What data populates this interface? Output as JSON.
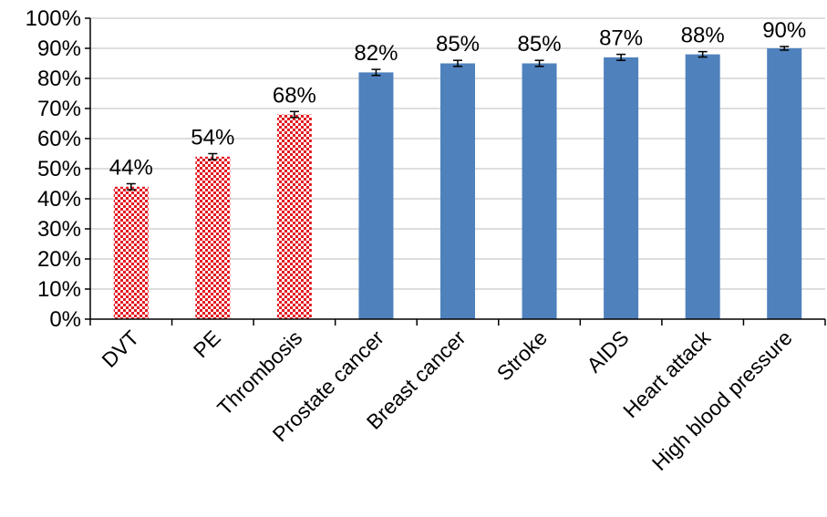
{
  "chart_data": {
    "type": "bar",
    "title": "",
    "xlabel": "",
    "ylabel": "",
    "categories": [
      "DVT",
      "PE",
      "Thrombosis",
      "Prostate cancer",
      "Breast cancer",
      "Stroke",
      "AIDS",
      "Heart attack",
      "High blood pressure"
    ],
    "values": [
      44,
      54,
      68,
      82,
      85,
      85,
      87,
      88,
      90
    ],
    "data_labels": [
      "44%",
      "54%",
      "68%",
      "82%",
      "85%",
      "85%",
      "87%",
      "88%",
      "90%"
    ],
    "error": [
      1.0,
      1.0,
      1.0,
      1.0,
      1.0,
      1.0,
      1.0,
      0.9,
      0.6
    ],
    "groups": [
      "clot",
      "clot",
      "clot",
      "other",
      "other",
      "other",
      "other",
      "other",
      "other"
    ],
    "ylim": [
      0,
      100
    ],
    "yticks": [
      0,
      10,
      20,
      30,
      40,
      50,
      60,
      70,
      80,
      90,
      100
    ],
    "ytick_labels": [
      "0%",
      "10%",
      "20%",
      "30%",
      "40%",
      "50%",
      "60%",
      "70%",
      "80%",
      "90%",
      "100%"
    ],
    "grid": true,
    "colors": {
      "clot_pattern_a": "#e31b23",
      "clot_pattern_b": "#ffffff",
      "other_bar": "#4f81bd",
      "grid": "#c9c9c9",
      "axis": "#000000"
    }
  }
}
